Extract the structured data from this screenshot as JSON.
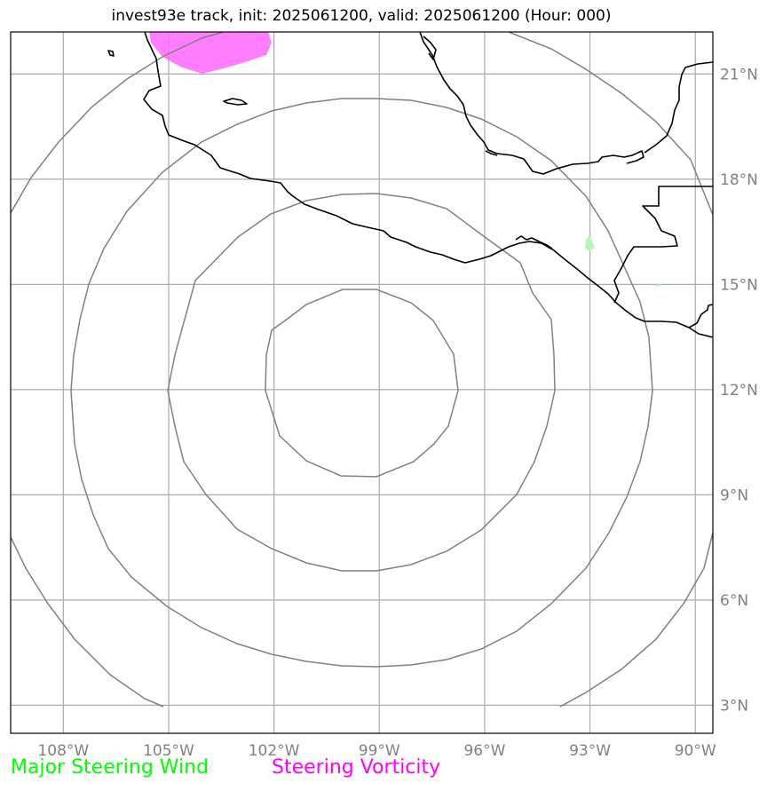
{
  "title": "invest93e track, init: 2025061200, valid: 2025061200 (Hour: 000)",
  "map": {
    "lon_labels": [
      "108°W",
      "105°W",
      "102°W",
      "99°W",
      "96°W",
      "93°W",
      "90°W"
    ],
    "lat_labels": [
      "21°N",
      "18°N",
      "15°N",
      "12°N",
      "9°N",
      "6°N",
      "3°N"
    ],
    "lon_values": [
      -108,
      -105,
      -102,
      -99,
      -96,
      -93,
      -90
    ],
    "lat_values": [
      21,
      18,
      15,
      12,
      9,
      6,
      3
    ],
    "extent": {
      "lon_min": -109.5,
      "lon_max": -89.5,
      "lat_min": 2.2,
      "lat_max": 22.2
    },
    "storm_center": {
      "lon": -99.0,
      "lat": 12.0
    },
    "range_rings": [
      "ring-1",
      "ring-2",
      "ring-3",
      "ring-4"
    ],
    "gridline_color": "#aaaaaa",
    "ring_color": "#808080",
    "coastline_color": "#000000",
    "vorticity_color": "#ff66ff",
    "wind_color": "#90ee90"
  },
  "legend": {
    "wind_label": "Major Steering Wind",
    "wind_color": "#00ff00",
    "vorticity_label": "Steering Vorticity",
    "vorticity_color": "#ff00ff"
  }
}
